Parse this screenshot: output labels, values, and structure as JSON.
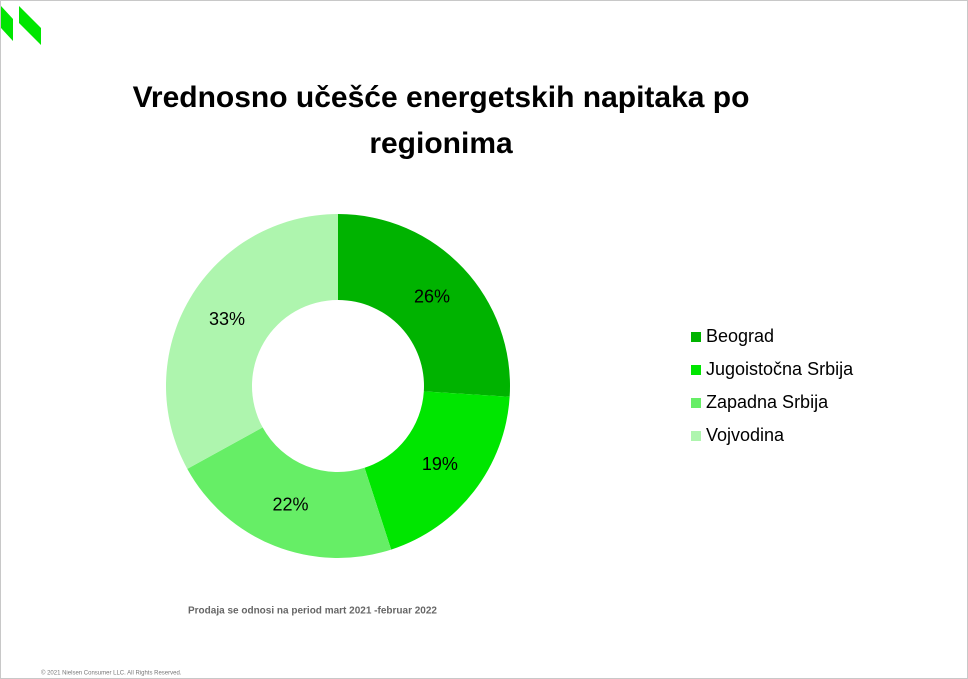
{
  "chart_data": {
    "type": "donut",
    "title": "Vrednosno učešće energetskih napitaka po regionima",
    "categories": [
      "Beograd",
      "Jugoistočna Srbija",
      "Zapadna Srbija",
      "Vojvodina"
    ],
    "values": [
      26,
      19,
      22,
      33
    ],
    "value_labels": [
      "26%",
      "19%",
      "22%",
      "33%"
    ],
    "colors": [
      "#00b300",
      "#00e600",
      "#66ee66",
      "#aef5ae"
    ],
    "legend": "right",
    "note": "Prodaja se odnosi na period mart 2021 -februar 2022",
    "copyright": "© 2021 Nielsen Consumer LLC. All Rights Reserved."
  }
}
